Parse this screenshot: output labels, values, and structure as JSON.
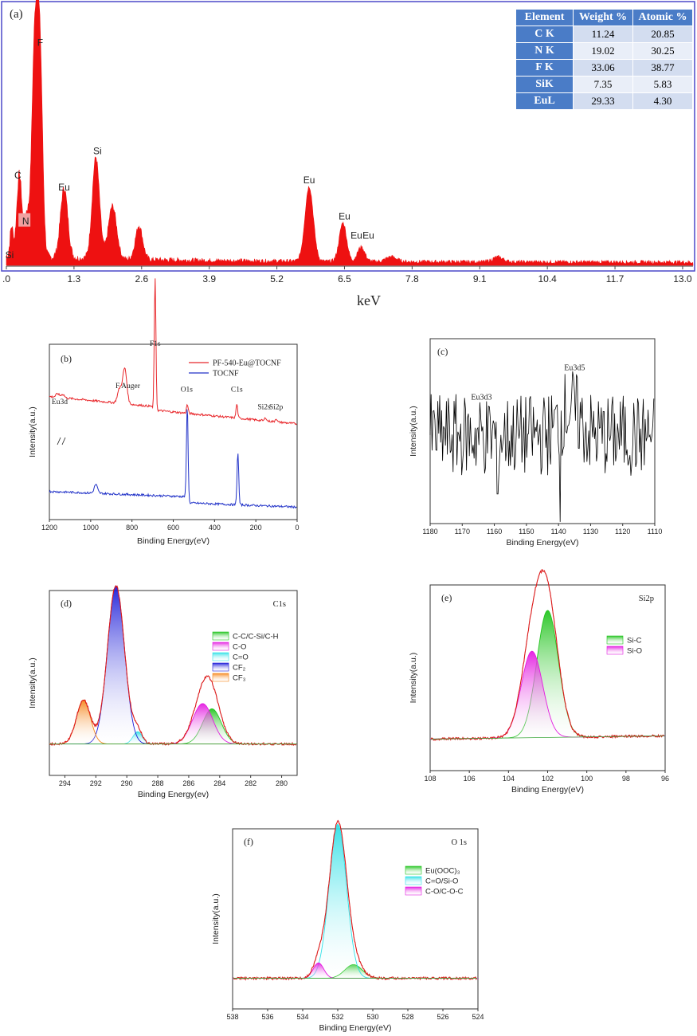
{
  "chart_data": [
    {
      "panel": "(a)",
      "type": "area",
      "xlabel": "keV",
      "xlim": [
        0,
        13.2
      ],
      "xticks": [
        ".0",
        "1.3",
        "2.6",
        "3.9",
        "5.2",
        "6.5",
        "7.8",
        "9.1",
        "10.4",
        "11.7",
        "13.0"
      ],
      "xtick_values": [
        0,
        1.3,
        2.6,
        3.9,
        5.2,
        6.5,
        7.8,
        9.1,
        10.4,
        11.7,
        13.0
      ],
      "color": "#ee1111",
      "peaks": [
        {
          "x": 0.1,
          "h": 0.12,
          "w": 0.03
        },
        {
          "x": 0.25,
          "h": 0.34,
          "w": 0.05
        },
        {
          "x": 0.39,
          "h": 0.16,
          "w": 0.04
        },
        {
          "x": 0.55,
          "h": 0.92,
          "w": 0.06
        },
        {
          "x": 0.65,
          "h": 0.72,
          "w": 0.05
        },
        {
          "x": 1.11,
          "h": 0.29,
          "w": 0.07
        },
        {
          "x": 1.72,
          "h": 0.42,
          "w": 0.07
        },
        {
          "x": 2.04,
          "h": 0.22,
          "w": 0.08
        },
        {
          "x": 2.55,
          "h": 0.14,
          "w": 0.07
        },
        {
          "x": 5.82,
          "h": 0.31,
          "w": 0.08
        },
        {
          "x": 6.47,
          "h": 0.16,
          "w": 0.07
        },
        {
          "x": 6.82,
          "h": 0.06,
          "w": 0.07
        },
        {
          "x": 7.4,
          "h": 0.02,
          "w": 0.1
        },
        {
          "x": 9.45,
          "h": 0.02,
          "w": 0.1
        }
      ],
      "labels": [
        {
          "text": "F",
          "x": 0.65,
          "y": 0.91
        },
        {
          "text": "Si",
          "x": 1.75,
          "y": 0.46
        },
        {
          "text": "C",
          "x": 0.22,
          "y": 0.36
        },
        {
          "text": "Eu",
          "x": 1.11,
          "y": 0.31
        },
        {
          "text": "N",
          "x": 0.37,
          "y": 0.17
        },
        {
          "text": "Si",
          "x": 0.06,
          "y": 0.03
        },
        {
          "text": "Eu",
          "x": 5.82,
          "y": 0.34
        },
        {
          "text": "Eu",
          "x": 6.5,
          "y": 0.19
        },
        {
          "text": "Eu",
          "x": 6.73,
          "y": 0.11
        },
        {
          "text": "Eu",
          "x": 6.96,
          "y": 0.11
        }
      ],
      "table": {
        "headers": [
          "Element",
          "Weight %",
          "Atomic %"
        ],
        "rows": [
          [
            "C K",
            "11.24",
            "20.85"
          ],
          [
            "N K",
            "19.02",
            "30.25"
          ],
          [
            "F K",
            "33.06",
            "38.77"
          ],
          [
            "SiK",
            "7.35",
            "5.83"
          ],
          [
            "EuL",
            "29.33",
            "4.30"
          ]
        ]
      }
    },
    {
      "panel": "(b)",
      "type": "line",
      "xlabel": "Binding Energy(eV)",
      "ylabel": "Intensity(a.u.)",
      "xlim": [
        1200,
        0
      ],
      "xticks": [
        "1200",
        "1000",
        "800",
        "600",
        "400",
        "200",
        "0"
      ],
      "series": [
        {
          "name": "PF-540-Eu@TOCNF",
          "color": "#e8262a",
          "offset": 0.6,
          "peaks": [
            {
              "x": 1160,
              "h": 0.02,
              "w": 8
            },
            {
              "x": 1135,
              "h": 0.02,
              "w": 8
            },
            {
              "x": 860,
              "h": 0.08,
              "w": 10
            },
            {
              "x": 835,
              "h": 0.2,
              "w": 10
            },
            {
              "x": 688,
              "h": 0.75,
              "w": 4
            },
            {
              "x": 532,
              "h": 0.05,
              "w": 4
            },
            {
              "x": 292,
              "h": 0.08,
              "w": 4
            },
            {
              "x": 153,
              "h": 0.02,
              "w": 4
            },
            {
              "x": 102,
              "h": 0.02,
              "w": 4
            }
          ]
        },
        {
          "name": "TOCNF",
          "color": "#2132c8",
          "offset": 0.12,
          "peaks": [
            {
              "x": 975,
              "h": 0.05,
              "w": 8
            },
            {
              "x": 532,
              "h": 0.52,
              "w": 4
            },
            {
              "x": 287,
              "h": 0.3,
              "w": 4
            }
          ]
        }
      ],
      "annotations": [
        {
          "text": "F1s",
          "x": 688,
          "y": 0.99
        },
        {
          "text": "F Auger",
          "x": 820,
          "y": 0.75
        },
        {
          "text": "Eu3d",
          "x": 1150,
          "y": 0.66
        },
        {
          "text": "O1s",
          "x": 535,
          "y": 0.73
        },
        {
          "text": "C1s",
          "x": 292,
          "y": 0.73
        },
        {
          "text": "Si2s",
          "x": 160,
          "y": 0.63
        },
        {
          "text": "Si2p",
          "x": 102,
          "y": 0.63
        }
      ]
    },
    {
      "panel": "(c)",
      "type": "line",
      "xlabel": "Binding Energy(eV)",
      "ylabel": "Intensity(a.u.)",
      "xlim": [
        1180,
        1110
      ],
      "xticks": [
        "1180",
        "1170",
        "1160",
        "1150",
        "1140",
        "1130",
        "1120",
        "1110"
      ],
      "color": "#000000",
      "noise_range": [
        0.25,
        0.7
      ],
      "peaks": [
        {
          "x": 1136.5,
          "h": 0.15,
          "w": 3
        }
      ],
      "dips": [
        {
          "x": 1139.5,
          "depth": 0.5
        }
      ],
      "annotations": [
        {
          "text": "Eu3d5",
          "x": 1135,
          "y": 0.83
        },
        {
          "text": "Eu3d3",
          "x": 1164,
          "y": 0.67
        }
      ]
    },
    {
      "panel": "(d)",
      "title": "C1s",
      "type": "line",
      "xlabel": "Binding Energy(ev)",
      "ylabel": "Intensity(a.u.)",
      "xlim": [
        295,
        279
      ],
      "xticks": [
        "294",
        "292",
        "290",
        "288",
        "286",
        "284",
        "282",
        "280"
      ],
      "series": [
        {
          "name": "C-C/C-Si/C-H",
          "color": "#22c41e",
          "peak": {
            "x": 284.5,
            "h": 0.2,
            "w": 0.6
          }
        },
        {
          "name": "C-O",
          "color": "#e31be0",
          "peak": {
            "x": 285.1,
            "h": 0.23,
            "w": 0.65
          }
        },
        {
          "name": "C=O",
          "color": "#2ee0e6",
          "peak": {
            "x": 289.3,
            "h": 0.07,
            "w": 0.3
          }
        },
        {
          "name": "CF₂",
          "color": "#1a1ad8",
          "peak": {
            "x": 290.7,
            "h": 0.9,
            "w": 0.55
          }
        },
        {
          "name": "CF₃",
          "color": "#f5861a",
          "peak": {
            "x": 292.8,
            "h": 0.25,
            "w": 0.45
          }
        }
      ],
      "envelope_color": "#e01b1b"
    },
    {
      "panel": "(e)",
      "title": "Si2p",
      "type": "line",
      "xlabel": "Binding Energy(eV)",
      "ylabel": "Intensity(a.u.)",
      "xlim": [
        108,
        96
      ],
      "xticks": [
        "108",
        "106",
        "104",
        "102",
        "100",
        "98",
        "96"
      ],
      "series": [
        {
          "name": "Si-C",
          "color": "#22c41e",
          "peak": {
            "x": 102.0,
            "h": 0.72,
            "w": 0.55
          }
        },
        {
          "name": "Si-O",
          "color": "#e31be0",
          "peak": {
            "x": 102.8,
            "h": 0.49,
            "w": 0.55
          }
        }
      ],
      "envelope_color": "#e01b1b"
    },
    {
      "panel": "(f)",
      "title": "O 1s",
      "type": "line",
      "xlabel": "Binding Energy(eV)",
      "ylabel": "Intensity(a.u.)",
      "xlim": [
        538,
        524
      ],
      "xticks": [
        "538",
        "536",
        "534",
        "532",
        "530",
        "528",
        "526",
        "524"
      ],
      "series": [
        {
          "name": "Eu(OOC)₃",
          "color": "#22c41e",
          "peak": {
            "x": 531.1,
            "h": 0.08,
            "w": 0.5
          }
        },
        {
          "name": "C=O/Si-O",
          "color": "#2ee0e6",
          "peak": {
            "x": 532.0,
            "h": 0.9,
            "w": 0.5
          }
        },
        {
          "name": "C-O/C-O-C",
          "color": "#e31be0",
          "peak": {
            "x": 533.1,
            "h": 0.09,
            "w": 0.3
          }
        }
      ],
      "envelope_color": "#e01b1b"
    }
  ]
}
